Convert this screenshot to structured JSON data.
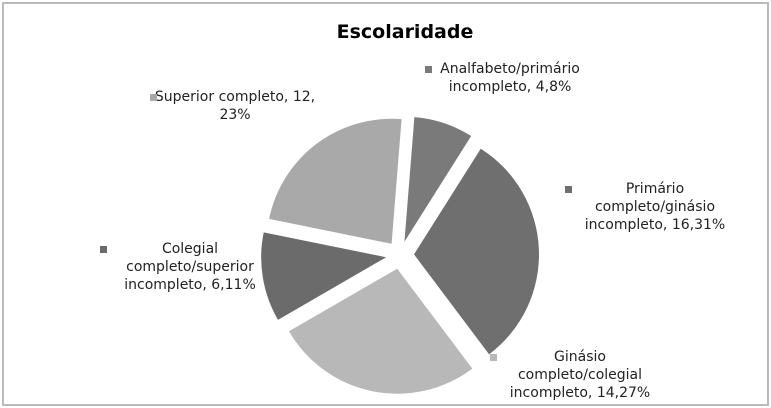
{
  "chart_data": {
    "type": "pie",
    "title": "Escolaridade",
    "categories": [
      "Analfabeto/primário incompleto,",
      "Primário completo/ginásio incompleto,",
      "Ginásio completo/colegial incompleto,",
      "Colegial completo/superior incompleto,",
      "Superior completo,"
    ],
    "values": [
      4,
      16,
      14,
      6,
      12
    ],
    "value_labels": [
      "4,8%",
      "16,31%",
      "14,27%",
      "6,11%",
      "12, 23%"
    ],
    "colors": [
      "#7a7a7a",
      "#6f6f6f",
      "#b8b8b8",
      "#6b6b6b",
      "#a9a9a9"
    ]
  }
}
